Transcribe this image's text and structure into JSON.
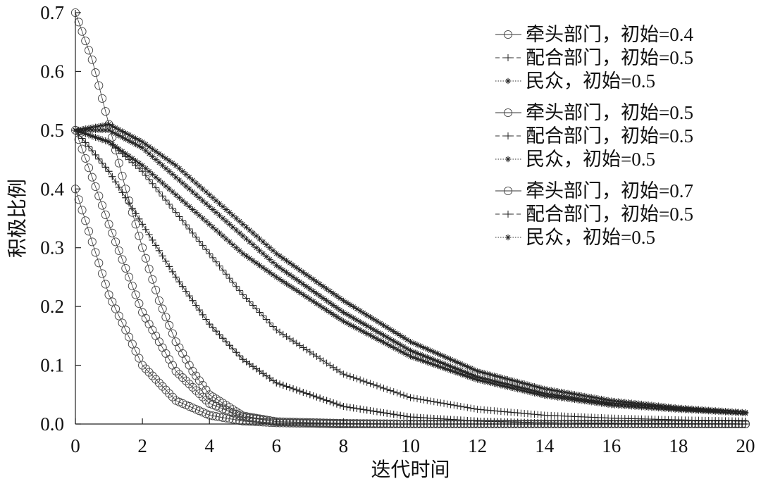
{
  "chart_data": {
    "type": "line",
    "xlabel": "迭代时间",
    "ylabel": "积极比例",
    "xlim": [
      0,
      20
    ],
    "ylim": [
      0,
      0.7
    ],
    "x_ticks": [
      "0",
      "2",
      "4",
      "6",
      "8",
      "10",
      "12",
      "14",
      "16",
      "18",
      "20"
    ],
    "y_ticks": [
      "0.0",
      "0.1",
      "0.2",
      "0.3",
      "0.4",
      "0.5",
      "0.6",
      "0.7"
    ],
    "grid": false,
    "legend_position": "top-right",
    "legend_groups": [
      {
        "entries": [
          {
            "label": "牵头部门，初始=0.4",
            "marker": "circle"
          },
          {
            "label": "配合部门，初始=0.5",
            "marker": "plus"
          },
          {
            "label": "民众，初始=0.5",
            "marker": "star"
          }
        ]
      },
      {
        "entries": [
          {
            "label": "牵头部门，初始=0.5",
            "marker": "circle"
          },
          {
            "label": "配合部门，初始=0.5",
            "marker": "plus"
          },
          {
            "label": "民众，初始=0.5",
            "marker": "star"
          }
        ]
      },
      {
        "entries": [
          {
            "label": "牵头部门，初始=0.7",
            "marker": "circle"
          },
          {
            "label": "配合部门，初始=0.5",
            "marker": "plus"
          },
          {
            "label": "民众，初始=0.5",
            "marker": "star"
          }
        ]
      }
    ],
    "series": [
      {
        "group": 1,
        "marker": "circle",
        "x": [
          0,
          1,
          2,
          3,
          4,
          5,
          6,
          8,
          10,
          20
        ],
        "y": [
          0.4,
          0.22,
          0.1,
          0.04,
          0.015,
          0.005,
          0.002,
          0.0,
          0.0,
          0.0
        ]
      },
      {
        "group": 1,
        "marker": "plus",
        "x": [
          0,
          1,
          2,
          3,
          4,
          5,
          6,
          8,
          10,
          12,
          14,
          20
        ],
        "y": [
          0.5,
          0.43,
          0.34,
          0.25,
          0.17,
          0.11,
          0.07,
          0.03,
          0.012,
          0.005,
          0.002,
          0.0
        ]
      },
      {
        "group": 1,
        "marker": "star",
        "x": [
          0,
          1,
          2,
          3,
          4,
          5,
          6,
          8,
          10,
          12,
          14,
          16,
          18,
          20
        ],
        "y": [
          0.5,
          0.48,
          0.44,
          0.39,
          0.34,
          0.29,
          0.25,
          0.175,
          0.115,
          0.075,
          0.048,
          0.032,
          0.024,
          0.018
        ]
      },
      {
        "group": 2,
        "marker": "circle",
        "x": [
          0,
          1,
          2,
          3,
          4,
          5,
          6,
          8,
          10,
          20
        ],
        "y": [
          0.5,
          0.34,
          0.19,
          0.09,
          0.035,
          0.012,
          0.004,
          0.001,
          0.0,
          0.0
        ]
      },
      {
        "group": 2,
        "marker": "plus",
        "x": [
          0,
          1,
          2,
          3,
          4,
          5,
          6,
          8,
          10,
          12,
          14,
          20
        ],
        "y": [
          0.5,
          0.43,
          0.34,
          0.25,
          0.17,
          0.11,
          0.07,
          0.03,
          0.012,
          0.005,
          0.002,
          0.0
        ]
      },
      {
        "group": 2,
        "marker": "star",
        "x": [
          0,
          1,
          2,
          3,
          4,
          5,
          6,
          8,
          10,
          12,
          14,
          16,
          18,
          20
        ],
        "y": [
          0.5,
          0.5,
          0.47,
          0.42,
          0.37,
          0.32,
          0.27,
          0.19,
          0.125,
          0.08,
          0.052,
          0.035,
          0.026,
          0.02
        ]
      },
      {
        "group": 3,
        "marker": "circle",
        "x": [
          0,
          0.5,
          1,
          1.5,
          2,
          2.5,
          3,
          3.5,
          4,
          5,
          6,
          8,
          10,
          20
        ],
        "y": [
          0.7,
          0.62,
          0.51,
          0.4,
          0.3,
          0.21,
          0.14,
          0.09,
          0.05,
          0.014,
          0.004,
          0.001,
          0.0,
          0.0
        ]
      },
      {
        "group": 3,
        "marker": "plus",
        "x": [
          0,
          1,
          2,
          3,
          4,
          5,
          6,
          8,
          10,
          12,
          14,
          16,
          18,
          20
        ],
        "y": [
          0.5,
          0.48,
          0.43,
          0.36,
          0.29,
          0.22,
          0.16,
          0.085,
          0.045,
          0.025,
          0.015,
          0.01,
          0.007,
          0.005
        ]
      },
      {
        "group": 3,
        "marker": "star",
        "x": [
          0,
          1,
          2,
          3,
          4,
          5,
          6,
          8,
          10,
          12,
          14,
          16,
          18,
          20
        ],
        "y": [
          0.5,
          0.51,
          0.48,
          0.44,
          0.39,
          0.34,
          0.29,
          0.21,
          0.14,
          0.09,
          0.06,
          0.04,
          0.028,
          0.02
        ]
      }
    ]
  }
}
